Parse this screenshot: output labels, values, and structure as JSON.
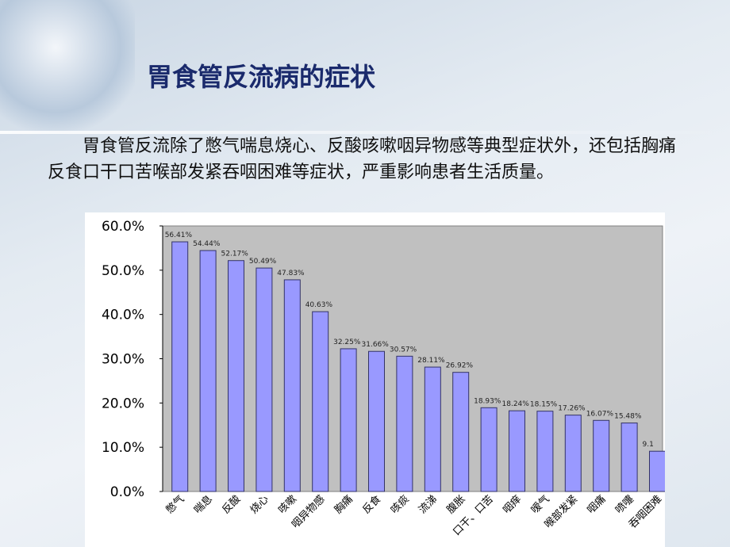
{
  "title": "胃食管反流病的症状",
  "paragraph": "胃食管反流除了憋气喘息烧心、反酸咳嗽咽异物感等典型症状外，还包括胸痛反食口干口苦喉部发紧吞咽困难等症状，严重影响患者生活质量。",
  "chart_data": {
    "type": "bar",
    "categories": [
      "憋气",
      "喘息",
      "反酸",
      "烧心",
      "咳嗽",
      "咽异物感",
      "胸痛",
      "反食",
      "咳痰",
      "流涕",
      "腹胀",
      "口干、口苦",
      "咽痒",
      "嗳气",
      "喉部发紧",
      "咽痛",
      "喷嚏",
      "吞咽困难"
    ],
    "values": [
      56.41,
      54.44,
      52.17,
      50.49,
      47.83,
      40.63,
      32.25,
      31.66,
      30.57,
      28.11,
      26.92,
      18.93,
      18.24,
      18.15,
      17.26,
      16.07,
      15.48,
      9.1
    ],
    "value_labels": [
      "56.41%",
      "54.44%",
      "52.17%",
      "50.49%",
      "47.83%",
      "40.63%",
      "32.25%",
      "31.66%",
      "30.57%",
      "28.11%",
      "26.92%",
      "18.93%",
      "18.24%",
      "18.15%",
      "17.26%",
      "16.07%",
      "15.48%",
      "9.1"
    ],
    "color": "#9999ff",
    "ylim": [
      0,
      60
    ],
    "yticks": [
      {
        "value": 0,
        "label": "0.0%"
      },
      {
        "value": 10,
        "label": "10.0%"
      },
      {
        "value": 20,
        "label": "20.0%"
      },
      {
        "value": 30,
        "label": "30.0%"
      },
      {
        "value": 40,
        "label": "40.0%"
      },
      {
        "value": 50,
        "label": "50.0%"
      },
      {
        "value": 60,
        "label": "60.0%"
      }
    ]
  }
}
